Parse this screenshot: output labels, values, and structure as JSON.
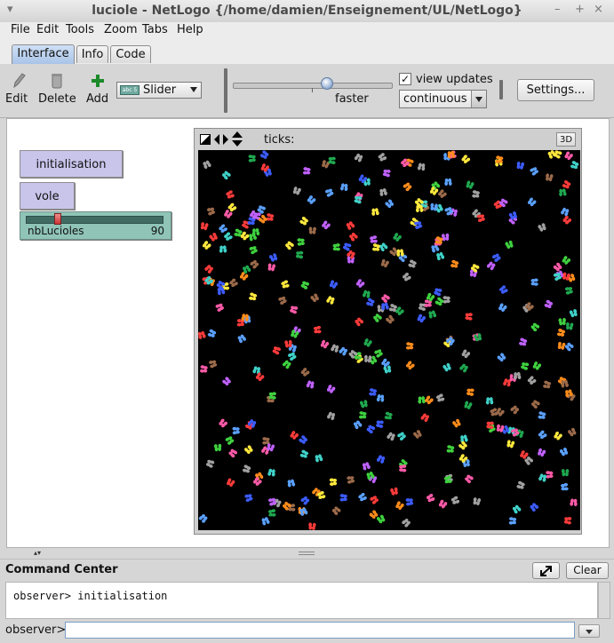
{
  "window": {
    "title": "luciole - NetLogo {/home/damien/Enseignement/UL/NetLogo}",
    "menu_glyph": "▾",
    "min_glyph": "–",
    "max_glyph": "+",
    "close_glyph": "×"
  },
  "menubar": {
    "items": [
      "File",
      "Edit",
      "Tools",
      "Zoom",
      "Tabs",
      "Help"
    ]
  },
  "tabs": [
    {
      "label": "Interface",
      "active": true
    },
    {
      "label": "Info",
      "active": false
    },
    {
      "label": "Code",
      "active": false
    }
  ],
  "toolbar": {
    "edit_label": "Edit",
    "delete_label": "Delete",
    "add_label": "Add",
    "widget_type": "Slider",
    "widget_type_icon_text": "abc 5",
    "speed_label": "faster",
    "view_updates_label": "view updates",
    "view_updates_checked": true,
    "update_mode": "continuous",
    "settings_label": "Settings..."
  },
  "widgets": {
    "buttons": [
      {
        "label": "initialisation"
      },
      {
        "label": "vole"
      }
    ],
    "slider": {
      "name": "nbLucioles",
      "value": "90",
      "fraction": 0.22
    }
  },
  "view": {
    "ticks_label": "ticks:",
    "ticks_value": "",
    "btn_3d": "3D",
    "turtle_colors": [
      "#ff3b3b",
      "#3fd13f",
      "#5aa0ff",
      "#ffe83d",
      "#ff8c1a",
      "#c061ff",
      "#3fd1c8",
      "#ff5aa8",
      "#9b6a4a",
      "#a0a0a0",
      "#1fa84f",
      "#3c5cff"
    ]
  },
  "command_center": {
    "title": "Command Center",
    "clear_label": "Clear",
    "output": "observer> initialisation",
    "prompt": "observer>",
    "input_value": ""
  }
}
